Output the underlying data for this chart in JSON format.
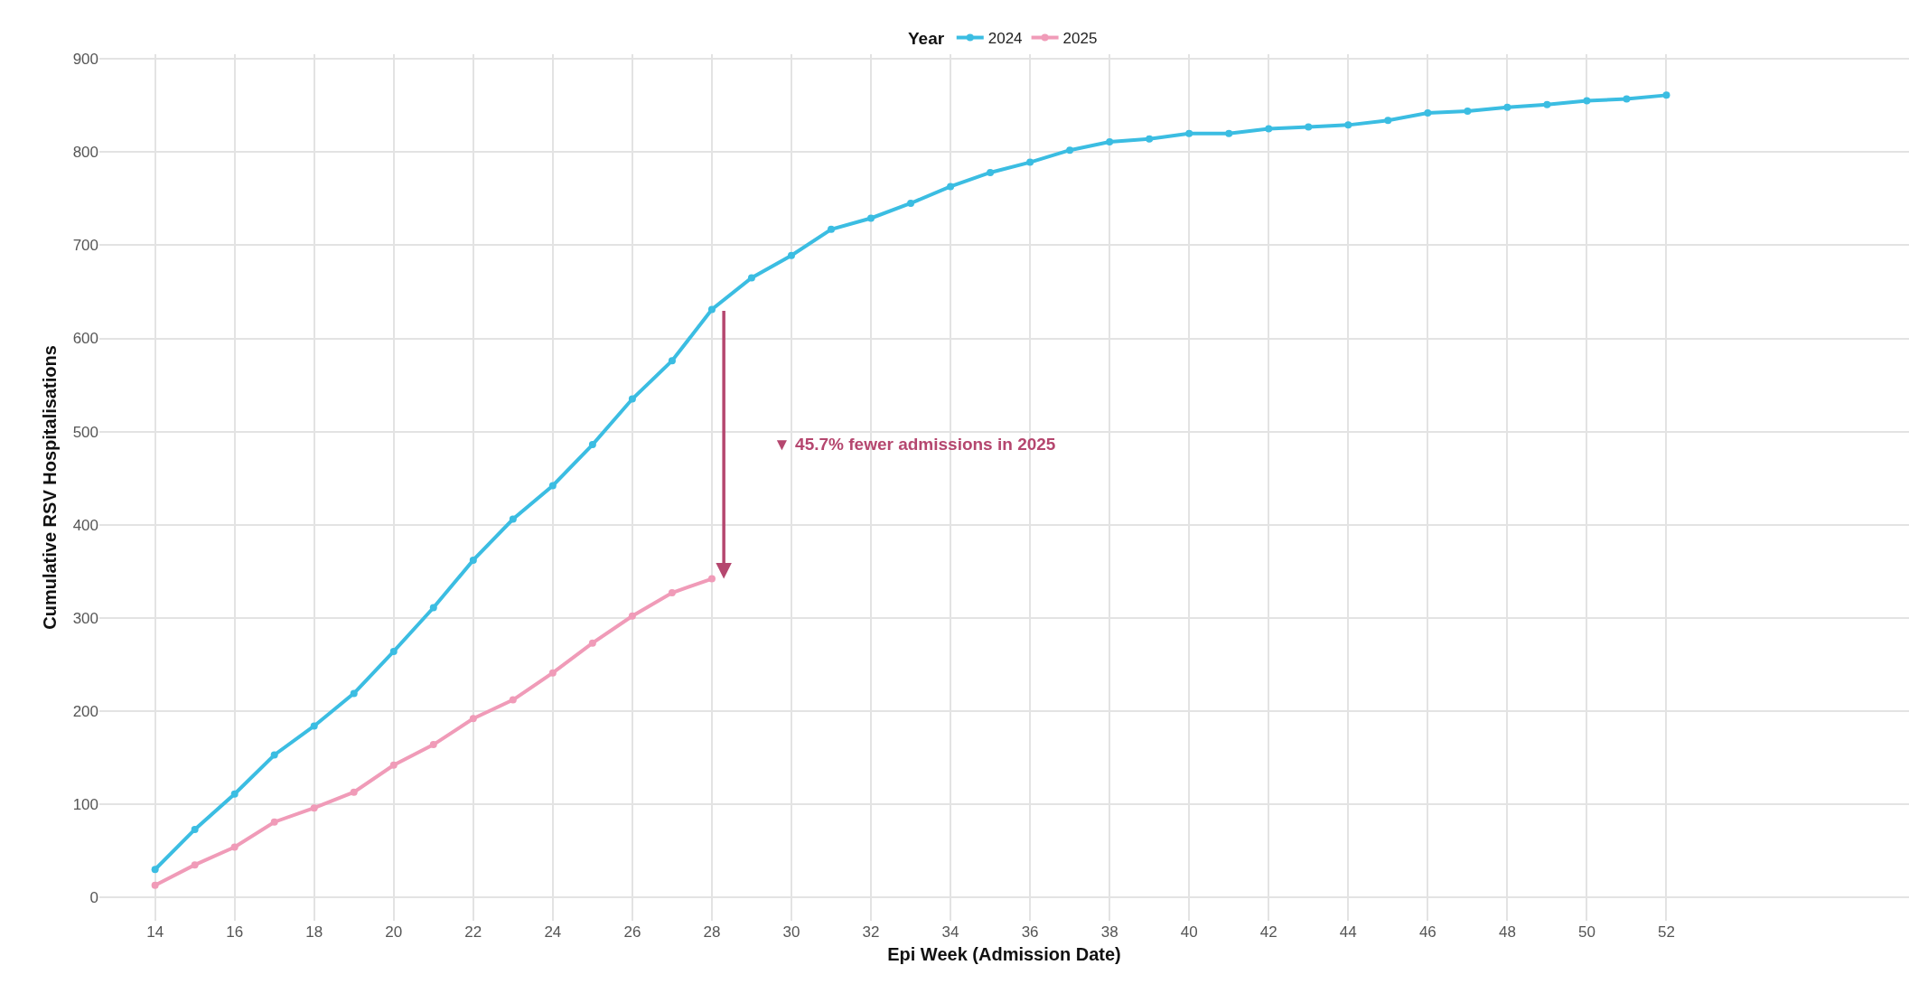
{
  "chart_data": {
    "type": "line",
    "xlabel": "Epi Week (Admission Date)",
    "ylabel": "Cumulative RSV Hospitalisations",
    "legend_title": "Year",
    "legend": "top",
    "grid": true,
    "marker": "circle",
    "line_style": "solid",
    "xlim": [
      12.6,
      58.1
    ],
    "xticks": [
      14,
      16,
      18,
      20,
      22,
      24,
      26,
      28,
      30,
      32,
      34,
      36,
      38,
      40,
      42,
      44,
      46,
      48,
      50,
      52
    ],
    "ylim": [
      -25,
      905
    ],
    "yticks": [
      0,
      100,
      200,
      300,
      400,
      500,
      600,
      700,
      800,
      900
    ],
    "series": [
      {
        "name": "2024",
        "color": "#3bbde2",
        "x": [
          14,
          15,
          16,
          17,
          18,
          19,
          20,
          21,
          22,
          23,
          24,
          25,
          26,
          27,
          28,
          29,
          30,
          31,
          32,
          33,
          34,
          35,
          36,
          37,
          38,
          39,
          40,
          41,
          42,
          43,
          44,
          45,
          46,
          47,
          48,
          49,
          50,
          51,
          52
        ],
        "values": [
          30,
          73,
          111,
          153,
          184,
          219,
          264,
          311,
          362,
          406,
          442,
          486,
          535,
          576,
          631,
          665,
          689,
          717,
          729,
          745,
          763,
          778,
          789,
          802,
          811,
          814,
          820,
          820,
          825,
          827,
          829,
          834,
          842,
          844,
          848,
          851,
          855,
          857,
          861
        ]
      },
      {
        "name": "2025",
        "color": "#f09bb8",
        "x": [
          14,
          15,
          16,
          17,
          18,
          19,
          20,
          21,
          22,
          23,
          24,
          25,
          26,
          27,
          28
        ],
        "values": [
          13,
          35,
          54,
          81,
          96,
          113,
          142,
          164,
          192,
          212,
          241,
          273,
          302,
          327,
          342
        ]
      }
    ],
    "annotations": [
      "▼ 45.7% fewer admissions in 2025"
    ]
  }
}
